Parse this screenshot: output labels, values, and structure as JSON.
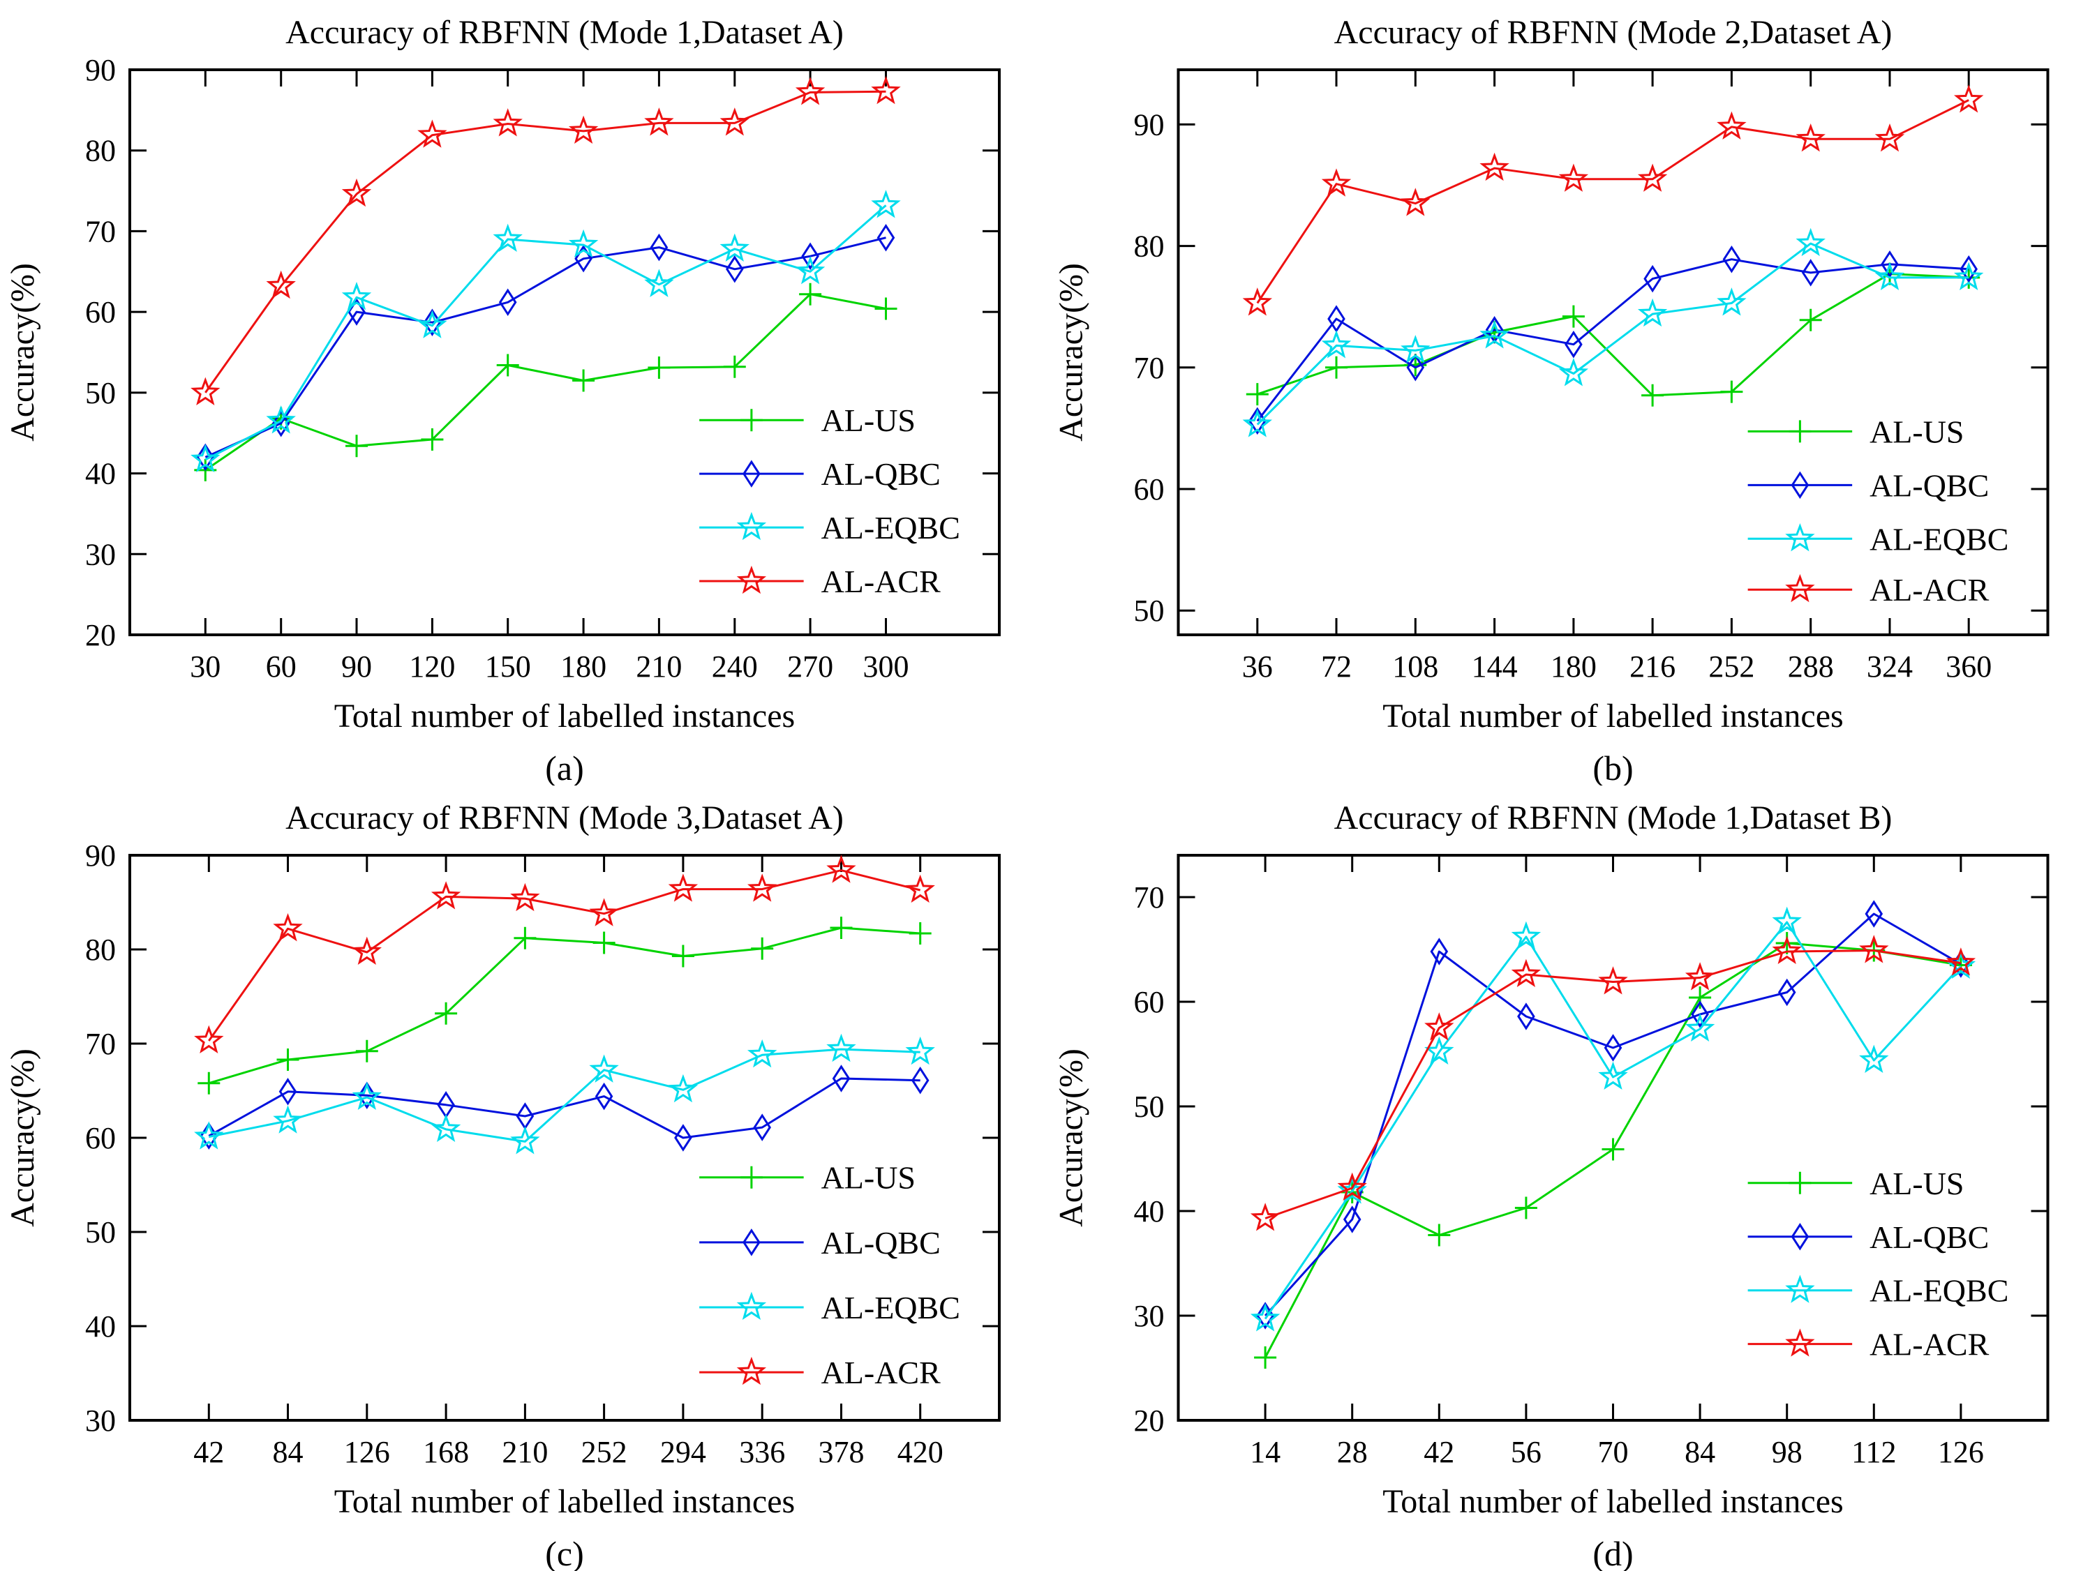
{
  "figure": {
    "background": "#ffffff",
    "axis_color": "#000000",
    "xlabel": "Total number of labelled instances",
    "ylabel": "Accuracy(%)"
  },
  "chart_data": [
    {
      "id": "a",
      "type": "line",
      "title": "Accuracy of RBFNN (Mode 1,Dataset A)",
      "caption": "(a)",
      "xlabel": "Total number of labelled instances",
      "ylabel": "Accuracy(%)",
      "x": [
        30,
        60,
        90,
        120,
        150,
        180,
        210,
        240,
        270,
        300
      ],
      "xlim": [
        0,
        345
      ],
      "ylim": [
        20,
        90
      ],
      "yticks": [
        20,
        30,
        40,
        50,
        60,
        70,
        80,
        90
      ],
      "grid": false,
      "legend_position": "inside-right-center",
      "legend_rows": [
        0.62,
        0.715,
        0.81,
        0.905
      ],
      "series": [
        {
          "name": "AL-US",
          "color": "#00d300",
          "marker": "plus",
          "values": [
            40.4,
            46.8,
            43.4,
            44.2,
            53.4,
            51.5,
            53.1,
            53.2,
            62.2,
            60.4
          ]
        },
        {
          "name": "AL-QBC",
          "color": "#0011dd",
          "marker": "diamond",
          "values": [
            42.0,
            46.2,
            60.0,
            58.7,
            61.2,
            66.6,
            68.0,
            65.3,
            66.9,
            69.2
          ]
        },
        {
          "name": "AL-EQBC",
          "color": "#00dcec",
          "marker": "star",
          "values": [
            41.7,
            46.5,
            61.8,
            58.3,
            69.0,
            68.3,
            63.4,
            67.8,
            65.0,
            73.2
          ]
        },
        {
          "name": "AL-ACR",
          "color": "#ee1111",
          "marker": "star",
          "values": [
            50.0,
            63.2,
            74.6,
            81.9,
            83.3,
            82.4,
            83.4,
            83.4,
            87.2,
            87.3
          ]
        }
      ]
    },
    {
      "id": "b",
      "type": "line",
      "title": "Accuracy of RBFNN (Mode 2,Dataset A)",
      "caption": "(b)",
      "xlabel": "Total number of labelled instances",
      "ylabel": "Accuracy(%)",
      "x": [
        36,
        72,
        108,
        144,
        180,
        216,
        252,
        288,
        324,
        360
      ],
      "xlim": [
        0,
        396
      ],
      "ylim": [
        48,
        94.5
      ],
      "yticks": [
        50,
        60,
        70,
        80,
        90
      ],
      "grid": false,
      "legend_position": "inside-right-center",
      "legend_rows": [
        0.64,
        0.735,
        0.83,
        0.92
      ],
      "series": [
        {
          "name": "AL-US",
          "color": "#00d300",
          "marker": "plus",
          "values": [
            67.8,
            70.0,
            70.2,
            72.9,
            74.2,
            67.7,
            68.0,
            73.9,
            77.7,
            77.4
          ]
        },
        {
          "name": "AL-QBC",
          "color": "#0011dd",
          "marker": "diamond",
          "values": [
            65.6,
            74.0,
            70.0,
            73.1,
            71.9,
            77.3,
            78.9,
            77.8,
            78.5,
            78.1
          ]
        },
        {
          "name": "AL-EQBC",
          "color": "#00dcec",
          "marker": "star",
          "values": [
            65.3,
            71.8,
            71.4,
            72.6,
            69.5,
            74.4,
            75.3,
            80.2,
            77.4,
            77.4
          ]
        },
        {
          "name": "AL-ACR",
          "color": "#ee1111",
          "marker": "star",
          "values": [
            75.3,
            85.1,
            83.5,
            86.4,
            85.5,
            85.5,
            89.8,
            88.8,
            88.8,
            92.0
          ]
        }
      ]
    },
    {
      "id": "c",
      "type": "line",
      "title": "Accuracy of RBFNN (Mode 3,Dataset A)",
      "caption": "(c)",
      "xlabel": "Total number of labelled instances",
      "ylabel": "Accuracy(%)",
      "x": [
        42,
        84,
        126,
        168,
        210,
        252,
        294,
        336,
        378,
        420
      ],
      "xlim": [
        0,
        462
      ],
      "ylim": [
        30,
        90
      ],
      "yticks": [
        30,
        40,
        50,
        60,
        70,
        80,
        90
      ],
      "grid": false,
      "legend_position": "inside-right-center",
      "legend_rows": [
        0.57,
        0.685,
        0.8,
        0.915
      ],
      "series": [
        {
          "name": "AL-US",
          "color": "#00d300",
          "marker": "plus",
          "values": [
            65.8,
            68.3,
            69.2,
            73.2,
            81.2,
            80.7,
            79.3,
            80.1,
            82.3,
            81.7
          ]
        },
        {
          "name": "AL-QBC",
          "color": "#0011dd",
          "marker": "diamond",
          "values": [
            60.2,
            64.9,
            64.5,
            63.5,
            62.3,
            64.4,
            60.0,
            61.1,
            66.3,
            66.1
          ]
        },
        {
          "name": "AL-EQBC",
          "color": "#00dcec",
          "marker": "star",
          "values": [
            60.1,
            61.8,
            64.3,
            60.9,
            59.6,
            67.2,
            65.1,
            68.8,
            69.4,
            69.1
          ]
        },
        {
          "name": "AL-ACR",
          "color": "#ee1111",
          "marker": "star",
          "values": [
            70.3,
            82.2,
            79.7,
            85.6,
            85.4,
            83.8,
            86.4,
            86.4,
            88.4,
            86.3
          ]
        }
      ]
    },
    {
      "id": "d",
      "type": "line",
      "title": "Accuracy of RBFNN (Mode 1,Dataset B)",
      "caption": "(d)",
      "xlabel": "Total number of labelled instances",
      "ylabel": "Accuracy(%)",
      "x": [
        14,
        28,
        42,
        56,
        70,
        84,
        98,
        112,
        126
      ],
      "xlim": [
        0,
        140
      ],
      "ylim": [
        20,
        74
      ],
      "yticks": [
        20,
        30,
        40,
        50,
        60,
        70
      ],
      "grid": false,
      "legend_position": "inside-right-center",
      "legend_rows": [
        0.58,
        0.675,
        0.77,
        0.865
      ],
      "series": [
        {
          "name": "AL-US",
          "color": "#00d300",
          "marker": "plus",
          "values": [
            26.0,
            41.8,
            37.7,
            40.3,
            45.9,
            60.4,
            65.6,
            64.9,
            63.5
          ]
        },
        {
          "name": "AL-QBC",
          "color": "#0011dd",
          "marker": "diamond",
          "values": [
            30.0,
            39.2,
            64.8,
            58.6,
            55.6,
            58.8,
            60.9,
            68.4,
            63.6
          ]
        },
        {
          "name": "AL-EQBC",
          "color": "#00dcec",
          "marker": "star",
          "values": [
            29.7,
            41.9,
            55.2,
            66.2,
            52.8,
            57.4,
            67.6,
            54.4,
            63.4
          ]
        },
        {
          "name": "AL-ACR",
          "color": "#ee1111",
          "marker": "star",
          "values": [
            39.3,
            42.2,
            57.5,
            62.6,
            61.9,
            62.3,
            64.8,
            64.9,
            63.7
          ]
        }
      ]
    }
  ]
}
